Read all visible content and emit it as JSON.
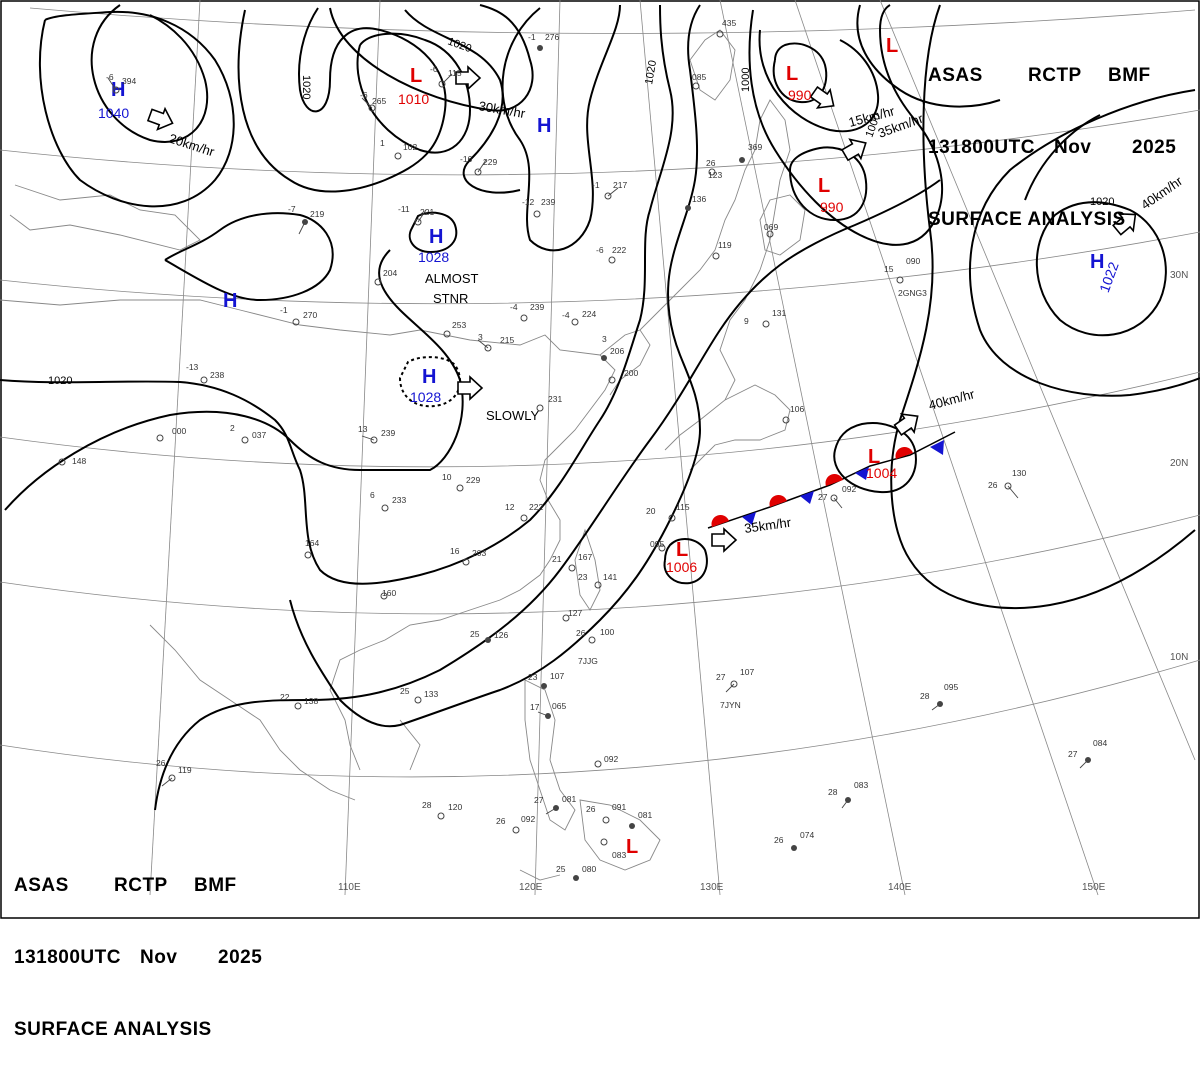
{
  "header": {
    "agency": "ASAS",
    "center": "RCTP",
    "office": "BMF",
    "time": "131800UTC",
    "month": "Nov",
    "year": "2025",
    "title": "SURFACE ANALYSIS"
  },
  "longitudes": [
    "110E",
    "120E",
    "130E",
    "140E",
    "150E"
  ],
  "latitudes": [
    "30N",
    "20N",
    "10N"
  ],
  "isobar_labels": [
    "1020",
    "1020",
    "1020",
    "1020",
    "1020",
    "1000",
    "1000"
  ],
  "pressure_centers": [
    {
      "type": "H",
      "value": "1040"
    },
    {
      "type": "L",
      "value": "1010"
    },
    {
      "type": "H",
      "value": ""
    },
    {
      "type": "L",
      "value": "990"
    },
    {
      "type": "L",
      "value": "990"
    },
    {
      "type": "H",
      "value": "1028"
    },
    {
      "type": "H",
      "value": ""
    },
    {
      "type": "H",
      "value": "1028"
    },
    {
      "type": "H",
      "value": "1022"
    },
    {
      "type": "L",
      "value": "1004"
    },
    {
      "type": "L",
      "value": "1006"
    },
    {
      "type": "L",
      "value": ""
    },
    {
      "type": "L",
      "value": ""
    }
  ],
  "movements": [
    {
      "text": "20km/hr"
    },
    {
      "text": "30km/hr"
    },
    {
      "text": "15km/hr"
    },
    {
      "text": "35km/hr"
    },
    {
      "text": "40km/hr"
    },
    {
      "text": "40km/hr"
    },
    {
      "text": "35km/hr"
    },
    {
      "text": "SLOWLY"
    },
    {
      "text": "ALMOST"
    },
    {
      "text": "STNR"
    }
  ],
  "stations": [
    {
      "temp": "-6",
      "pres": "394"
    },
    {
      "temp": "-1",
      "pres": "276"
    },
    {
      "temp": "-6",
      "pres": "115"
    },
    {
      "temp": "-6",
      "pres": "265"
    },
    {
      "temp": "1",
      "pres": "102"
    },
    {
      "temp": "-16",
      "pres": "229"
    },
    {
      "temp": "-7",
      "pres": "219"
    },
    {
      "temp": "-11",
      "pres": "221"
    },
    {
      "temp": "-12",
      "pres": "239"
    },
    {
      "temp": "-1",
      "pres": "217"
    },
    {
      "temp": "",
      "pres": "204"
    },
    {
      "temp": "-1",
      "pres": "270"
    },
    {
      "temp": "-4",
      "pres": "239"
    },
    {
      "temp": "-4",
      "pres": "224"
    },
    {
      "temp": "-6",
      "pres": "222"
    },
    {
      "temp": "",
      "pres": "253"
    },
    {
      "temp": "3",
      "pres": "215"
    },
    {
      "temp": "3",
      "pres": "206"
    },
    {
      "temp": "",
      "pres": "200"
    },
    {
      "temp": "-13",
      "pres": "238"
    },
    {
      "temp": "",
      "pres": "000"
    },
    {
      "temp": "2",
      "pres": "037"
    },
    {
      "temp": "",
      "pres": "148"
    },
    {
      "temp": "13",
      "pres": "239"
    },
    {
      "temp": "",
      "pres": "231"
    },
    {
      "temp": "6",
      "pres": "233"
    },
    {
      "temp": "10",
      "pres": "229"
    },
    {
      "temp": "12",
      "pres": "222"
    },
    {
      "temp": "16",
      "pres": "203"
    },
    {
      "temp": "",
      "pres": "164"
    },
    {
      "temp": "21",
      "pres": "167"
    },
    {
      "temp": "23",
      "pres": "141"
    },
    {
      "temp": "",
      "pres": "160"
    },
    {
      "temp": "",
      "pres": "127"
    },
    {
      "temp": "25",
      "pres": "126"
    },
    {
      "temp": "26",
      "pres": "100"
    },
    {
      "temp": "25",
      "pres": "133"
    },
    {
      "temp": "22",
      "pres": "138"
    },
    {
      "temp": "23",
      "pres": "107"
    },
    {
      "temp": "17",
      "pres": "065"
    },
    {
      "temp": "",
      "pres": "092"
    },
    {
      "temp": "26",
      "pres": "119"
    },
    {
      "temp": "28",
      "pres": "120"
    },
    {
      "temp": "26",
      "pres": "092"
    },
    {
      "temp": "27",
      "pres": "081"
    },
    {
      "temp": "26",
      "pres": "091"
    },
    {
      "temp": "",
      "pres": "081"
    },
    {
      "temp": "25",
      "pres": "080"
    },
    {
      "temp": "26",
      "pres": "074"
    },
    {
      "temp": "27",
      "pres": "107"
    },
    {
      "temp": "28",
      "pres": "083"
    },
    {
      "temp": "28",
      "pres": "095"
    },
    {
      "temp": "27",
      "pres": "084"
    },
    {
      "temp": "26",
      "pres": "130"
    },
    {
      "temp": "27",
      "pres": "092"
    },
    {
      "temp": "20",
      "pres": "115"
    },
    {
      "temp": "",
      "pres": "095"
    },
    {
      "temp": "",
      "pres": "106"
    },
    {
      "temp": "9",
      "pres": "131"
    },
    {
      "temp": "",
      "pres": "085"
    },
    {
      "temp": "",
      "pres": "136"
    },
    {
      "temp": "",
      "pres": "069"
    },
    {
      "temp": "15",
      "pres": "090"
    },
    {
      "temp": "",
      "pres": "119"
    },
    {
      "temp": "26",
      "pres": "123"
    },
    {
      "temp": "",
      "pres": "369"
    },
    {
      "temp": "",
      "pres": "435"
    },
    {
      "temp": "",
      "pres": "083"
    }
  ],
  "station_ids": [
    "2GNG3",
    "7JJG",
    "7JYN"
  ],
  "colors": {
    "high": "#1414d2",
    "low": "#e00000",
    "isobar": "#000000",
    "grid": "#777777",
    "coast": "#7a7a7a"
  }
}
